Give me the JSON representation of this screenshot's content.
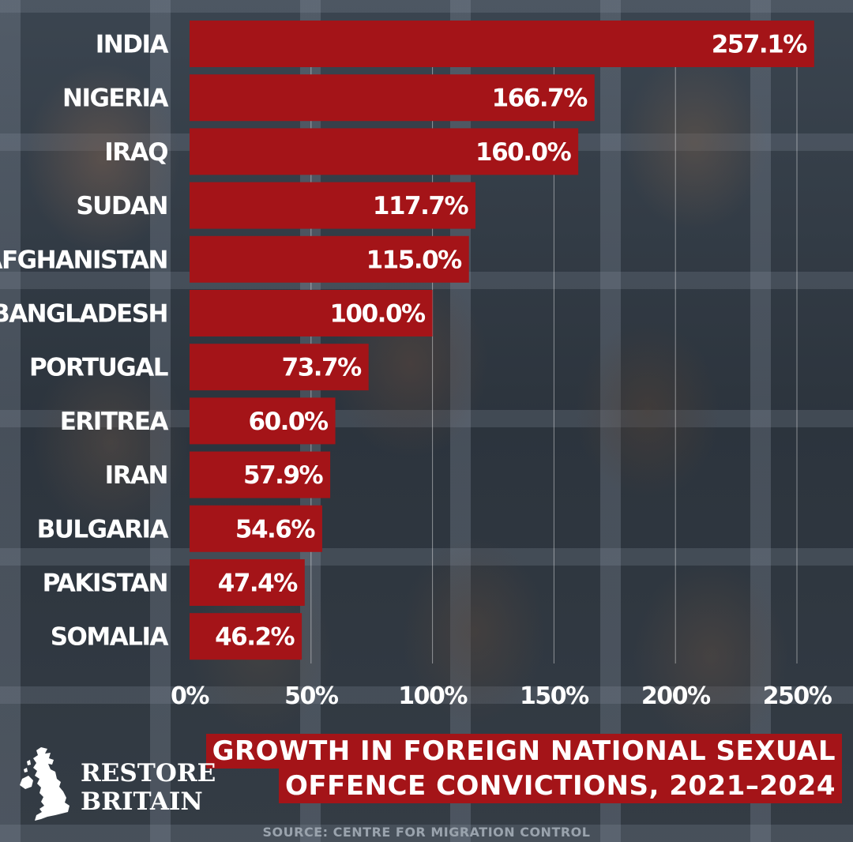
{
  "chart_data": {
    "type": "bar",
    "orientation": "horizontal",
    "title": "GROWTH IN FOREIGN NATIONAL SEXUAL OFFENCE CONVICTIONS, 2021–2024",
    "title_lines": [
      "GROWTH IN FOREIGN NATIONAL SEXUAL",
      "OFFENCE CONVICTIONS, 2021–2024"
    ],
    "categories": [
      "INDIA",
      "NIGERIA",
      "IRAQ",
      "SUDAN",
      "AFGHANISTAN",
      "BANGLADESH",
      "PORTUGAL",
      "ERITREA",
      "IRAN",
      "BULGARIA",
      "PAKISTAN",
      "SOMALIA"
    ],
    "values": [
      257.1,
      166.7,
      160.0,
      117.7,
      115.0,
      100.0,
      73.7,
      60.0,
      57.9,
      54.6,
      47.4,
      46.2
    ],
    "value_labels": [
      "257.1%",
      "166.7%",
      "160.0%",
      "117.7%",
      "115.0%",
      "100.0%",
      "73.7%",
      "60.0%",
      "57.9%",
      "54.6%",
      "47.4%",
      "46.2%"
    ],
    "xlim": [
      0,
      260
    ],
    "xticks": [
      0,
      50,
      100,
      150,
      200,
      250
    ],
    "xtick_labels": [
      "0%",
      "50%",
      "100%",
      "150%",
      "200%",
      "250%"
    ],
    "grid": true,
    "bar_color": "#a41418",
    "source": "SOURCE: CENTRE FOR MIGRATION CONTROL"
  },
  "branding": {
    "logo_line1": "RESTORE",
    "logo_line2": "BRITAIN",
    "logo_icon": "uk-map-icon"
  }
}
